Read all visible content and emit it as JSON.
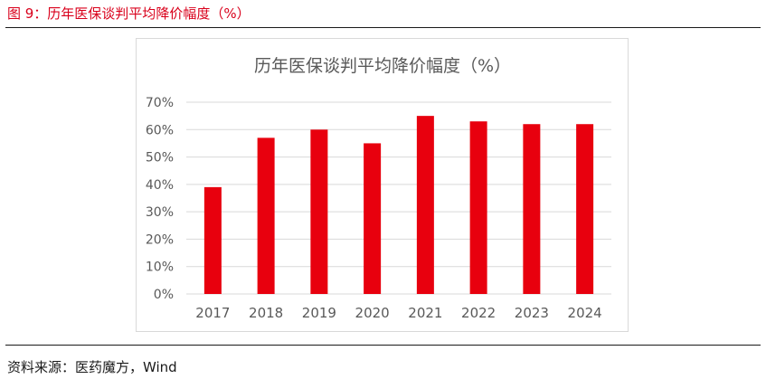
{
  "figure_title": "图 9：历年医保谈判平均降价幅度（%）",
  "source": "资料来源：医药魔方，Wind",
  "colors": {
    "bar": "#e8000e",
    "title_red": "#d9001b",
    "grid": "#d9d9d9",
    "axis_text": "#595959"
  },
  "chart_data": {
    "type": "bar",
    "title": "历年医保谈判平均降价幅度（%）",
    "categories": [
      "2017",
      "2018",
      "2019",
      "2020",
      "2021",
      "2022",
      "2023",
      "2024"
    ],
    "values": [
      39,
      57,
      60,
      55,
      65,
      63,
      62,
      62
    ],
    "ylim": [
      0,
      70
    ],
    "yticks": [
      "0%",
      "10%",
      "20%",
      "30%",
      "40%",
      "50%",
      "60%",
      "70%"
    ],
    "grid": true,
    "xlabel": "",
    "ylabel": ""
  }
}
